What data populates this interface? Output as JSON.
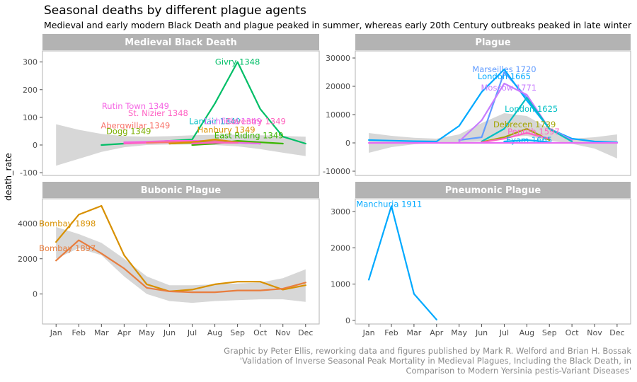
{
  "title": "Seasonal deaths by different plague agents",
  "subtitle": "Medieval and early modern Black Death and plague peaked in summer, whereas early 20th Century outbreaks peaked in late winter",
  "caption_lines": [
    "Graphic by Peter Ellis, reworking data and figures published by Mark R. Welford and Brian H. Bossak",
    "'Validation of Inverse Seasonal Peak Mortality in Medieval Plagues, Including the Black Death, in",
    "Comparison to Modern Yersinia pestis-Variant Diseases'"
  ],
  "ylabel": "death_rate",
  "chart_data": [
    {
      "type": "line",
      "panel": "Medieval Black Death",
      "x": [
        "Jan",
        "Feb",
        "Mar",
        "Apr",
        "May",
        "Jun",
        "Jul",
        "Aug",
        "Sep",
        "Oct",
        "Nov",
        "Dec"
      ],
      "ylim": [
        -110,
        340
      ],
      "yticks": [
        -100,
        0,
        100,
        200,
        300
      ],
      "band": {
        "lower": [
          -75,
          -50,
          -25,
          -8,
          0,
          2,
          2,
          0,
          -5,
          -15,
          -28,
          -40
        ],
        "upper": [
          75,
          55,
          40,
          32,
          30,
          32,
          35,
          37,
          37,
          35,
          33,
          30
        ]
      },
      "series": [
        {
          "name": "Givry 1348",
          "color": "#00BE67",
          "values": [
            null,
            null,
            0,
            5,
            10,
            15,
            20,
            150,
            300,
            130,
            30,
            5
          ],
          "label_month": 9,
          "label_value": 300
        },
        {
          "name": "Rutin Town 1349",
          "color": "#F564E3",
          "values": [
            null,
            null,
            null,
            10,
            12,
            15,
            15,
            15,
            12,
            null,
            null,
            null
          ],
          "label_month": 4.5,
          "label_value": 140
        },
        {
          "name": "St. Nizier 1348",
          "color": "#FF61C3",
          "values": [
            null,
            null,
            null,
            5,
            8,
            10,
            12,
            14,
            12,
            8,
            null,
            null
          ],
          "label_month": 5.5,
          "label_value": 115
        },
        {
          "name": "Lanfair 1349",
          "color": "#00BFC4",
          "values": [
            null,
            null,
            null,
            null,
            null,
            5,
            10,
            15,
            12,
            8,
            null,
            null
          ],
          "label_month": 8,
          "label_value": 85
        },
        {
          "name": "Aberqwillar 1349",
          "color": "#F8766D",
          "values": [
            null,
            null,
            null,
            null,
            8,
            10,
            12,
            14,
            10,
            null,
            null,
            null
          ],
          "label_month": 4.5,
          "label_value": 70
        },
        {
          "name": "Dogg 1349",
          "color": "#7CAE00",
          "values": [
            null,
            null,
            null,
            null,
            null,
            5,
            8,
            10,
            8,
            5,
            null,
            null
          ],
          "label_month": 4.2,
          "label_value": 50
        },
        {
          "name": "East Riding 1349",
          "color": "#39B600",
          "values": [
            null,
            null,
            null,
            null,
            null,
            null,
            0,
            5,
            15,
            10,
            5,
            null
          ],
          "label_month": 9.5,
          "label_value": 35
        },
        {
          "name": "Hanbury 1349",
          "color": "#D89000",
          "values": [
            null,
            null,
            null,
            null,
            null,
            5,
            10,
            20,
            10,
            5,
            null,
            null
          ],
          "label_month": 8.5,
          "label_value": 55
        },
        {
          "name": "Lichfield 1349",
          "color": "#E76BF3",
          "values": [
            null,
            null,
            null,
            null,
            null,
            null,
            5,
            10,
            8,
            5,
            null,
            null
          ],
          "label_month": 8.8,
          "label_value": 85
        },
        {
          "name": "Coventry 1349",
          "color": "#FF62BC",
          "values": [
            null,
            null,
            null,
            null,
            null,
            null,
            5,
            8,
            8,
            null,
            null,
            null
          ],
          "label_month": 9.8,
          "label_value": 85
        }
      ]
    },
    {
      "type": "line",
      "panel": "Plague",
      "x": [
        "Jan",
        "Feb",
        "Mar",
        "Apr",
        "May",
        "Jun",
        "Jul",
        "Aug",
        "Sep",
        "Oct",
        "Nov",
        "Dec"
      ],
      "ylim": [
        -11500,
        32500
      ],
      "yticks": [
        -10000,
        0,
        10000,
        20000,
        30000
      ],
      "band": {
        "lower": [
          -3500,
          -1500,
          -500,
          0,
          200,
          500,
          2000,
          2500,
          800,
          -300,
          -2000,
          -5500
        ],
        "upper": [
          3500,
          2500,
          1800,
          1500,
          3000,
          7000,
          10500,
          9500,
          5000,
          1500,
          2000,
          3000
        ]
      },
      "series": [
        {
          "name": "Marseilles 1720",
          "color": "#619CFF",
          "values": [
            null,
            null,
            null,
            null,
            1000,
            2000,
            25000,
            16000,
            5000,
            null,
            null,
            null
          ],
          "label_month": 7,
          "label_value": 26000
        },
        {
          "name": "London 1665",
          "color": "#00A9FF",
          "values": [
            1000,
            800,
            600,
            500,
            6000,
            18000,
            26000,
            15000,
            5000,
            1500,
            500,
            200
          ],
          "label_month": 7,
          "label_value": 23500
        },
        {
          "name": "Moscow 1771",
          "color": "#C77CFF",
          "values": [
            null,
            null,
            null,
            null,
            500,
            8000,
            21000,
            17000,
            5000,
            1000,
            null,
            null
          ],
          "label_month": 7.2,
          "label_value": 19500
        },
        {
          "name": "London 1625",
          "color": "#00BFC4",
          "values": [
            null,
            null,
            null,
            null,
            null,
            500,
            5000,
            16000,
            5000,
            500,
            null,
            null
          ],
          "label_month": 8.2,
          "label_value": 12000
        },
        {
          "name": "Debrecen 1739",
          "color": "#A3A500",
          "values": [
            null,
            null,
            null,
            null,
            null,
            300,
            2000,
            5000,
            1000,
            null,
            null,
            null
          ],
          "label_month": 7.9,
          "label_value": 6500
        },
        {
          "name": "Penrith 1597",
          "color": "#FF61C3",
          "values": [
            null,
            null,
            null,
            null,
            null,
            200,
            1500,
            3500,
            1500,
            null,
            null,
            null
          ],
          "label_month": 8.3,
          "label_value": 4000
        },
        {
          "name": "Eyam 1665",
          "color": "#00B0F6",
          "values": [
            null,
            null,
            null,
            null,
            null,
            null,
            500,
            1000,
            300,
            null,
            null,
            null
          ],
          "label_month": 8.1,
          "label_value": 1000
        },
        {
          "name": "",
          "color": "#E76BF3",
          "values": [
            0,
            0,
            0,
            0,
            0,
            0,
            0,
            0,
            0,
            0,
            0,
            0
          ],
          "label_month": 0,
          "label_value": 0
        }
      ]
    },
    {
      "type": "line",
      "panel": "Bubonic Plague",
      "x": [
        "Jan",
        "Feb",
        "Mar",
        "Apr",
        "May",
        "Jun",
        "Jul",
        "Aug",
        "Sep",
        "Oct",
        "Nov",
        "Dec"
      ],
      "ylim": [
        -1700,
        5400
      ],
      "yticks": [
        0,
        2000,
        4000
      ],
      "band": {
        "lower": [
          2000,
          2600,
          2200,
          1000,
          0,
          -400,
          -500,
          -400,
          -350,
          -300,
          -300,
          -450
        ],
        "upper": [
          3800,
          3400,
          2900,
          2000,
          1000,
          500,
          500,
          550,
          600,
          650,
          900,
          1400
        ]
      },
      "series": [
        {
          "name": "Bombay 1898",
          "color": "#D89000",
          "values": [
            2950,
            4500,
            5000,
            2200,
            550,
            150,
            250,
            550,
            700,
            700,
            250,
            500
          ],
          "label_month": 1.5,
          "label_value": 4000
        },
        {
          "name": "Bombay 1897",
          "color": "#E87D3E",
          "values": [
            1900,
            3050,
            2300,
            1450,
            350,
            150,
            100,
            100,
            200,
            200,
            300,
            650
          ],
          "label_month": 1,
          "label_value": 2600
        }
      ]
    },
    {
      "type": "line",
      "panel": "Pneumonic Plague",
      "x": [
        "Jan",
        "Feb",
        "Mar",
        "Apr",
        "May",
        "Jun",
        "Jul",
        "Aug",
        "Sep",
        "Oct",
        "Nov",
        "Dec"
      ],
      "ylim": [
        -100,
        3350
      ],
      "yticks": [
        0,
        1000,
        2000,
        3000
      ],
      "band": null,
      "series": [
        {
          "name": "Manchuria 1911",
          "color": "#00A9FF",
          "values": [
            1120,
            3150,
            730,
            20,
            null,
            null,
            null,
            null,
            null,
            null,
            null,
            null
          ],
          "label_month": 1.9,
          "label_value": 3200
        }
      ]
    }
  ]
}
